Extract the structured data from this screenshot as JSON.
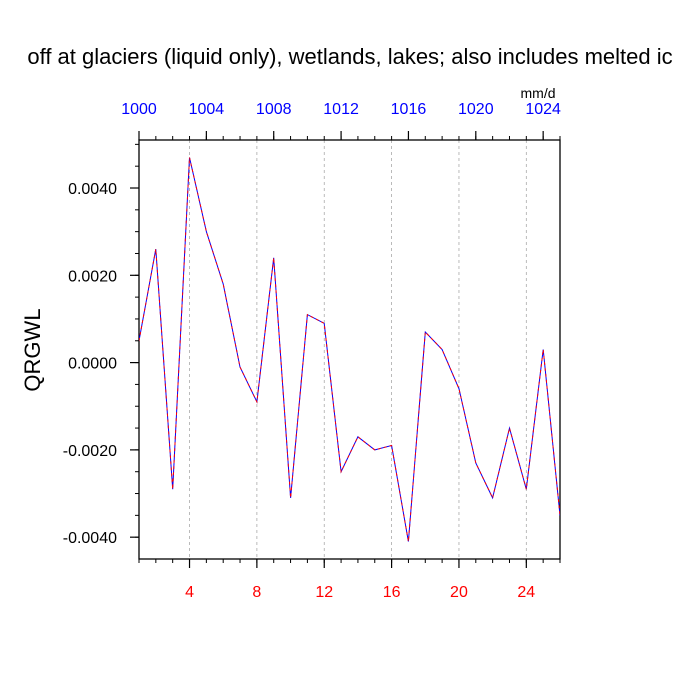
{
  "chart_data": {
    "type": "line",
    "title": "off at glaciers (liquid only), wetlands, lakes; also includes melted ic",
    "ylabel": "QRGWL",
    "units_label": "mm/d",
    "xlim": [
      1,
      26
    ],
    "ylim": [
      -0.0045,
      0.0051
    ],
    "grid_x": true,
    "bottom_axis": {
      "ticks": [
        4,
        8,
        12,
        16,
        20,
        24
      ],
      "labels": [
        "4",
        "8",
        "12",
        "16",
        "20",
        "24"
      ],
      "color": "#ff0000"
    },
    "top_axis": {
      "ticks": [
        1,
        5,
        9,
        13,
        17,
        21,
        25
      ],
      "labels": [
        "1000",
        "1004",
        "1008",
        "1012",
        "1016",
        "1020",
        "1024"
      ],
      "color": "#0000ff"
    },
    "left_axis": {
      "ticks": [
        -0.004,
        -0.002,
        0,
        0.002,
        0.004
      ],
      "labels": [
        "-0.0040",
        "-0.0020",
        "0.0000",
        "0.0020",
        "0.0040"
      ]
    },
    "series": [
      {
        "color": "#0000ff",
        "dash_color": "#ff0000",
        "x": [
          1,
          2,
          3,
          4,
          5,
          6,
          7,
          8,
          9,
          10,
          11,
          12,
          13,
          14,
          15,
          16,
          17,
          18,
          19,
          20,
          21,
          22,
          23,
          24,
          25,
          26
        ],
        "values": [
          0.0005,
          0.0026,
          -0.0029,
          0.0047,
          0.003,
          0.0018,
          -0.0001,
          -0.0009,
          0.0024,
          -0.0031,
          0.0011,
          0.0009,
          -0.0025,
          -0.0017,
          -0.002,
          -0.0019,
          -0.0041,
          0.0007,
          0.0003,
          -0.0006,
          -0.0023,
          -0.0031,
          -0.0015,
          -0.0029,
          0.0003,
          -0.0035
        ]
      }
    ]
  }
}
